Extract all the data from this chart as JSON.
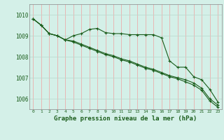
{
  "title": "Graphe pression niveau de la mer (hPa)",
  "background_color": "#d4f0e8",
  "grid_color_h": "#b8d8cc",
  "grid_color_v": "#f0a0a0",
  "line_color": "#1a5c1a",
  "x_ticks": [
    0,
    1,
    2,
    3,
    4,
    5,
    6,
    7,
    8,
    9,
    10,
    11,
    12,
    13,
    14,
    15,
    16,
    17,
    18,
    19,
    20,
    21,
    22,
    23
  ],
  "ylim": [
    1005.5,
    1010.5
  ],
  "yticks": [
    1006,
    1007,
    1008,
    1009,
    1010
  ],
  "series1": [
    1009.8,
    1009.5,
    1009.1,
    1009.0,
    1008.8,
    1009.0,
    1009.1,
    1009.3,
    1009.35,
    1009.15,
    1009.1,
    1009.1,
    1009.05,
    1009.05,
    1009.05,
    1009.05,
    1008.9,
    1007.8,
    1007.5,
    1007.5,
    1007.05,
    1006.9,
    1006.45,
    1005.85
  ],
  "series2": [
    1009.8,
    1009.5,
    1009.1,
    1009.0,
    1008.8,
    1008.75,
    1008.6,
    1008.45,
    1008.3,
    1008.15,
    1008.05,
    1007.9,
    1007.8,
    1007.65,
    1007.5,
    1007.4,
    1007.25,
    1007.1,
    1007.0,
    1006.9,
    1006.75,
    1006.5,
    1006.0,
    1005.7
  ],
  "series3": [
    1009.8,
    1009.5,
    1009.1,
    1009.0,
    1008.8,
    1008.7,
    1008.55,
    1008.4,
    1008.25,
    1008.1,
    1008.0,
    1007.85,
    1007.75,
    1007.6,
    1007.45,
    1007.35,
    1007.2,
    1007.05,
    1006.95,
    1006.8,
    1006.65,
    1006.4,
    1005.9,
    1005.6
  ]
}
